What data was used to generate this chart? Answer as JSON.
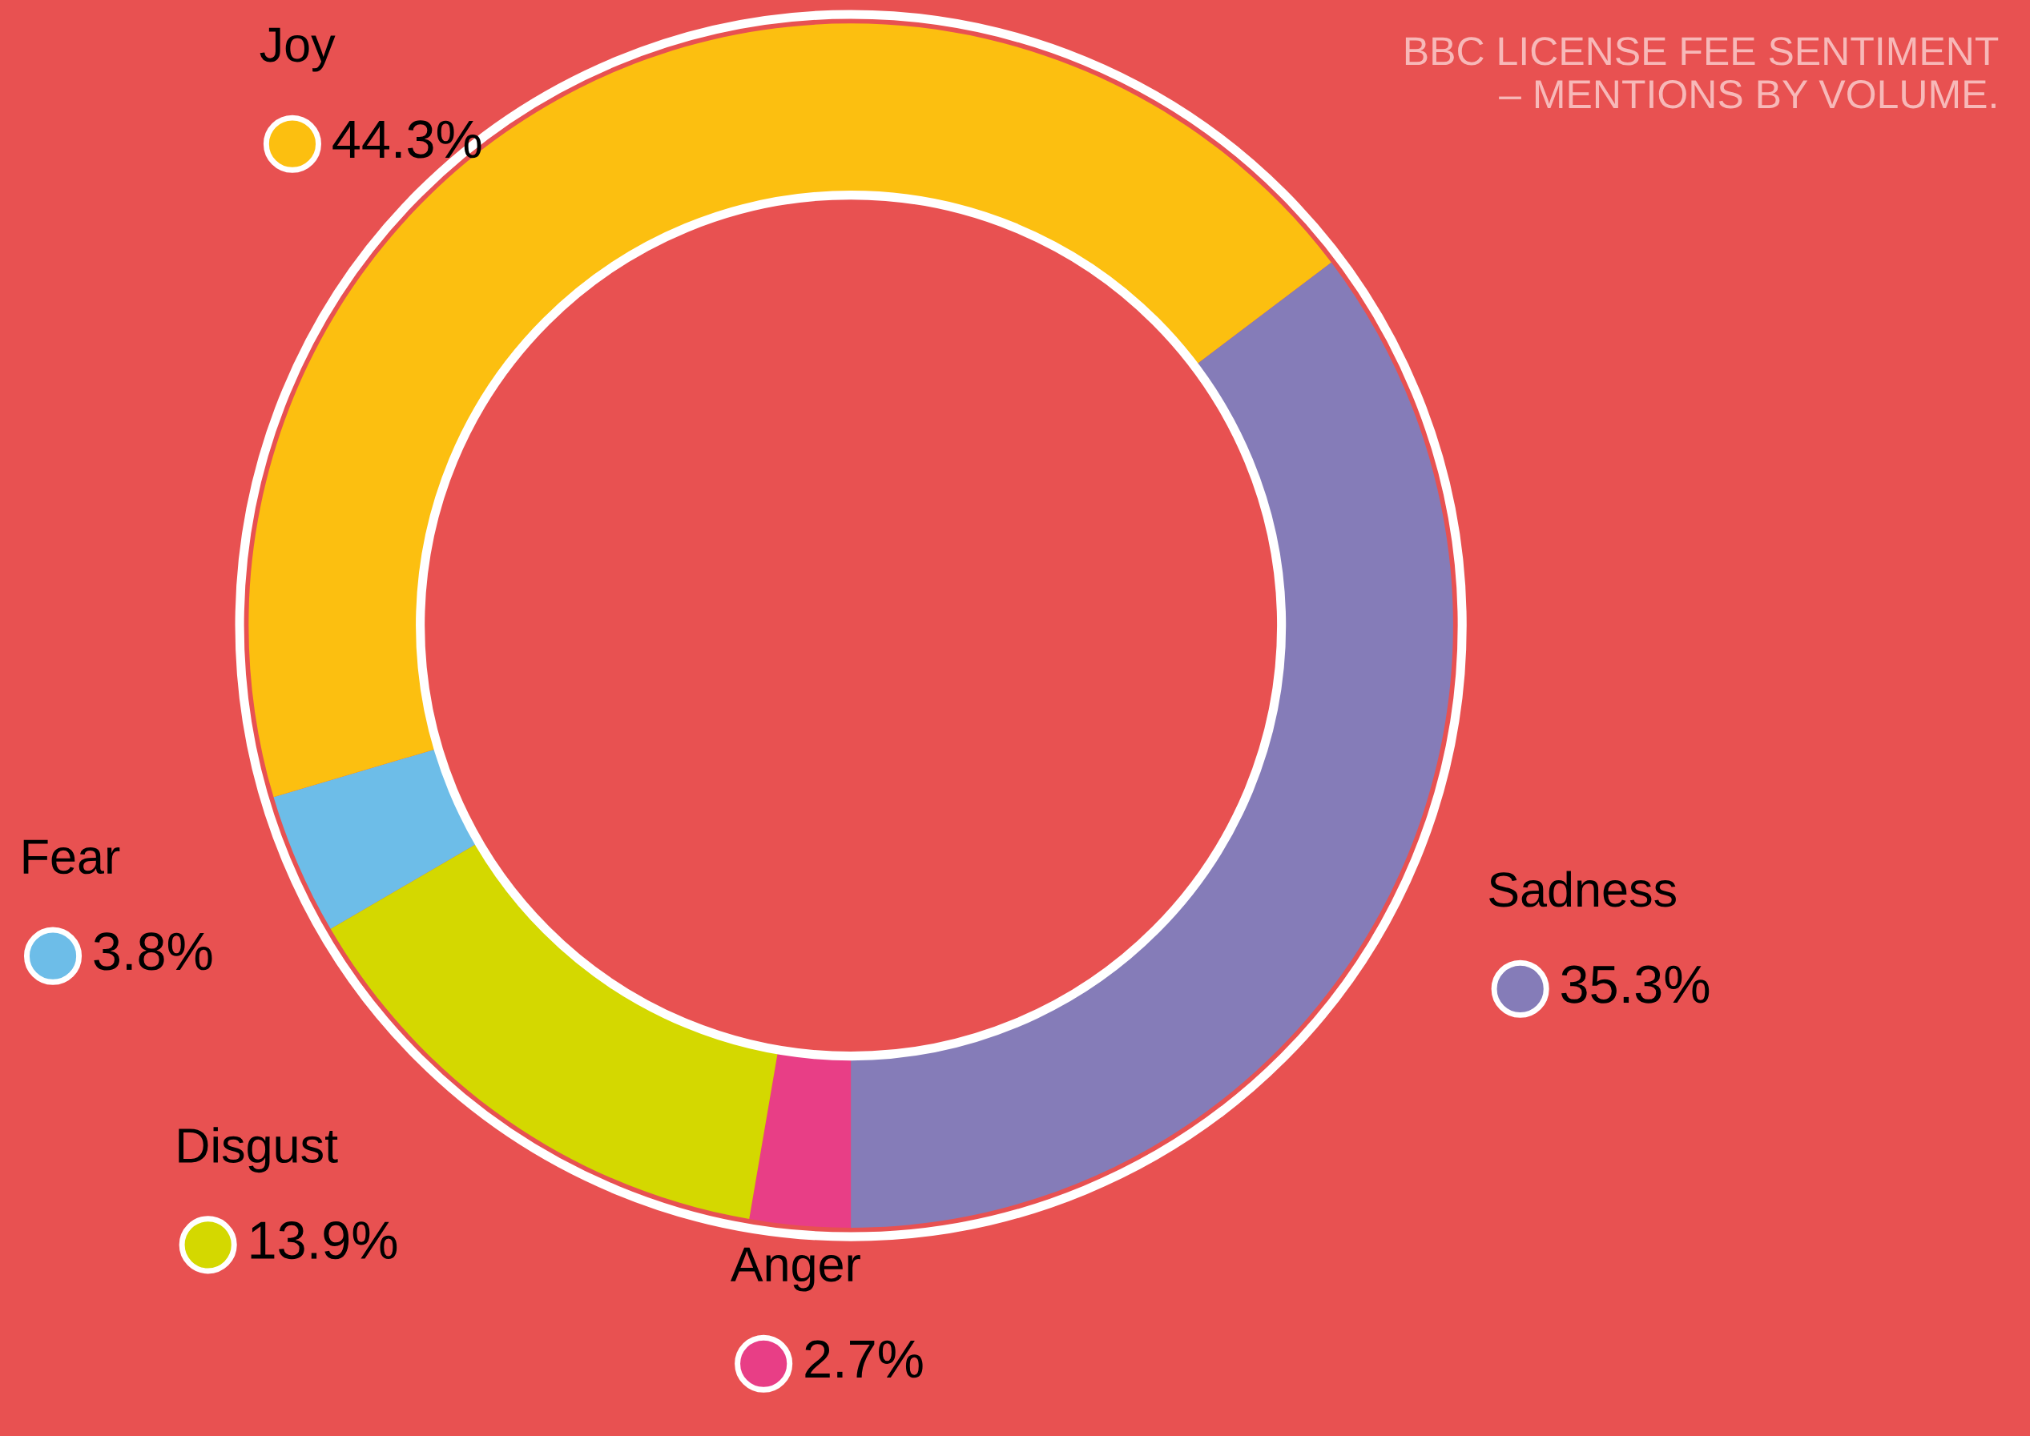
{
  "chart_data": {
    "type": "donut",
    "title": "BBC LICENSE FEE SENTIMENT\n– MENTIONS BY VOLUME.",
    "categories": [
      "Anger",
      "Disgust",
      "Fear",
      "Joy",
      "Sadness"
    ],
    "values": [
      2.7,
      13.9,
      3.8,
      44.3,
      35.3
    ],
    "value_labels": [
      "2.7%",
      "13.9%",
      "3.8%",
      "44.3%",
      "35.3%"
    ],
    "colors": [
      "#e83e86",
      "#d4d800",
      "#6dbde8",
      "#fcbf10",
      "#857cb8"
    ]
  }
}
